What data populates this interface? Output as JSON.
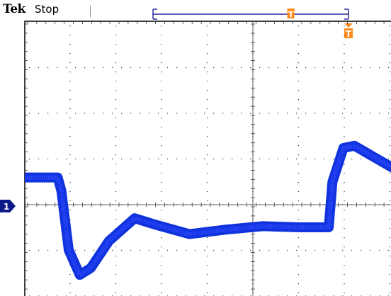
{
  "header": {
    "brand": "Tek",
    "acquisition_status": "Stop"
  },
  "record_view": {
    "trigger_position_fraction": 0.705,
    "marker_icon": "trigger-position-icon"
  },
  "trigger_marker": {
    "icon": "trigger-point-icon",
    "label": "T",
    "color": "#ff8c1a"
  },
  "channel1": {
    "label": "1",
    "color": "#1133dd",
    "marker_color": "#0b1a88"
  },
  "graticule": {
    "divisions_x": 10,
    "divisions_y": 8,
    "grid_color": "#333333"
  },
  "waveform": {
    "description_points": [
      [
        0.0,
        1.2
      ],
      [
        0.9,
        1.2
      ],
      [
        1.0,
        0.6
      ],
      [
        1.2,
        -2.0
      ],
      [
        1.5,
        -3.1
      ],
      [
        1.8,
        -2.8
      ],
      [
        2.3,
        -1.6
      ],
      [
        3.0,
        -0.6
      ],
      [
        3.6,
        -0.9
      ],
      [
        4.5,
        -1.3
      ],
      [
        5.5,
        -1.1
      ],
      [
        6.5,
        -0.95
      ],
      [
        7.5,
        -1.0
      ],
      [
        8.3,
        -1.0
      ],
      [
        8.4,
        1.0
      ],
      [
        8.7,
        2.5
      ],
      [
        9.0,
        2.6
      ],
      [
        10.5,
        1.2
      ]
    ]
  }
}
